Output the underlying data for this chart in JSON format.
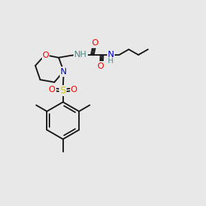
{
  "bg_color": "#e8e8e8",
  "bond_color": "#1a1a1a",
  "atom_colors": {
    "O": "#ff0000",
    "N": "#0000cc",
    "S": "#cccc00",
    "NH": "#4a8a8a",
    "C": "#1a1a1a"
  },
  "figsize": [
    3.0,
    3.0
  ],
  "dpi": 100
}
